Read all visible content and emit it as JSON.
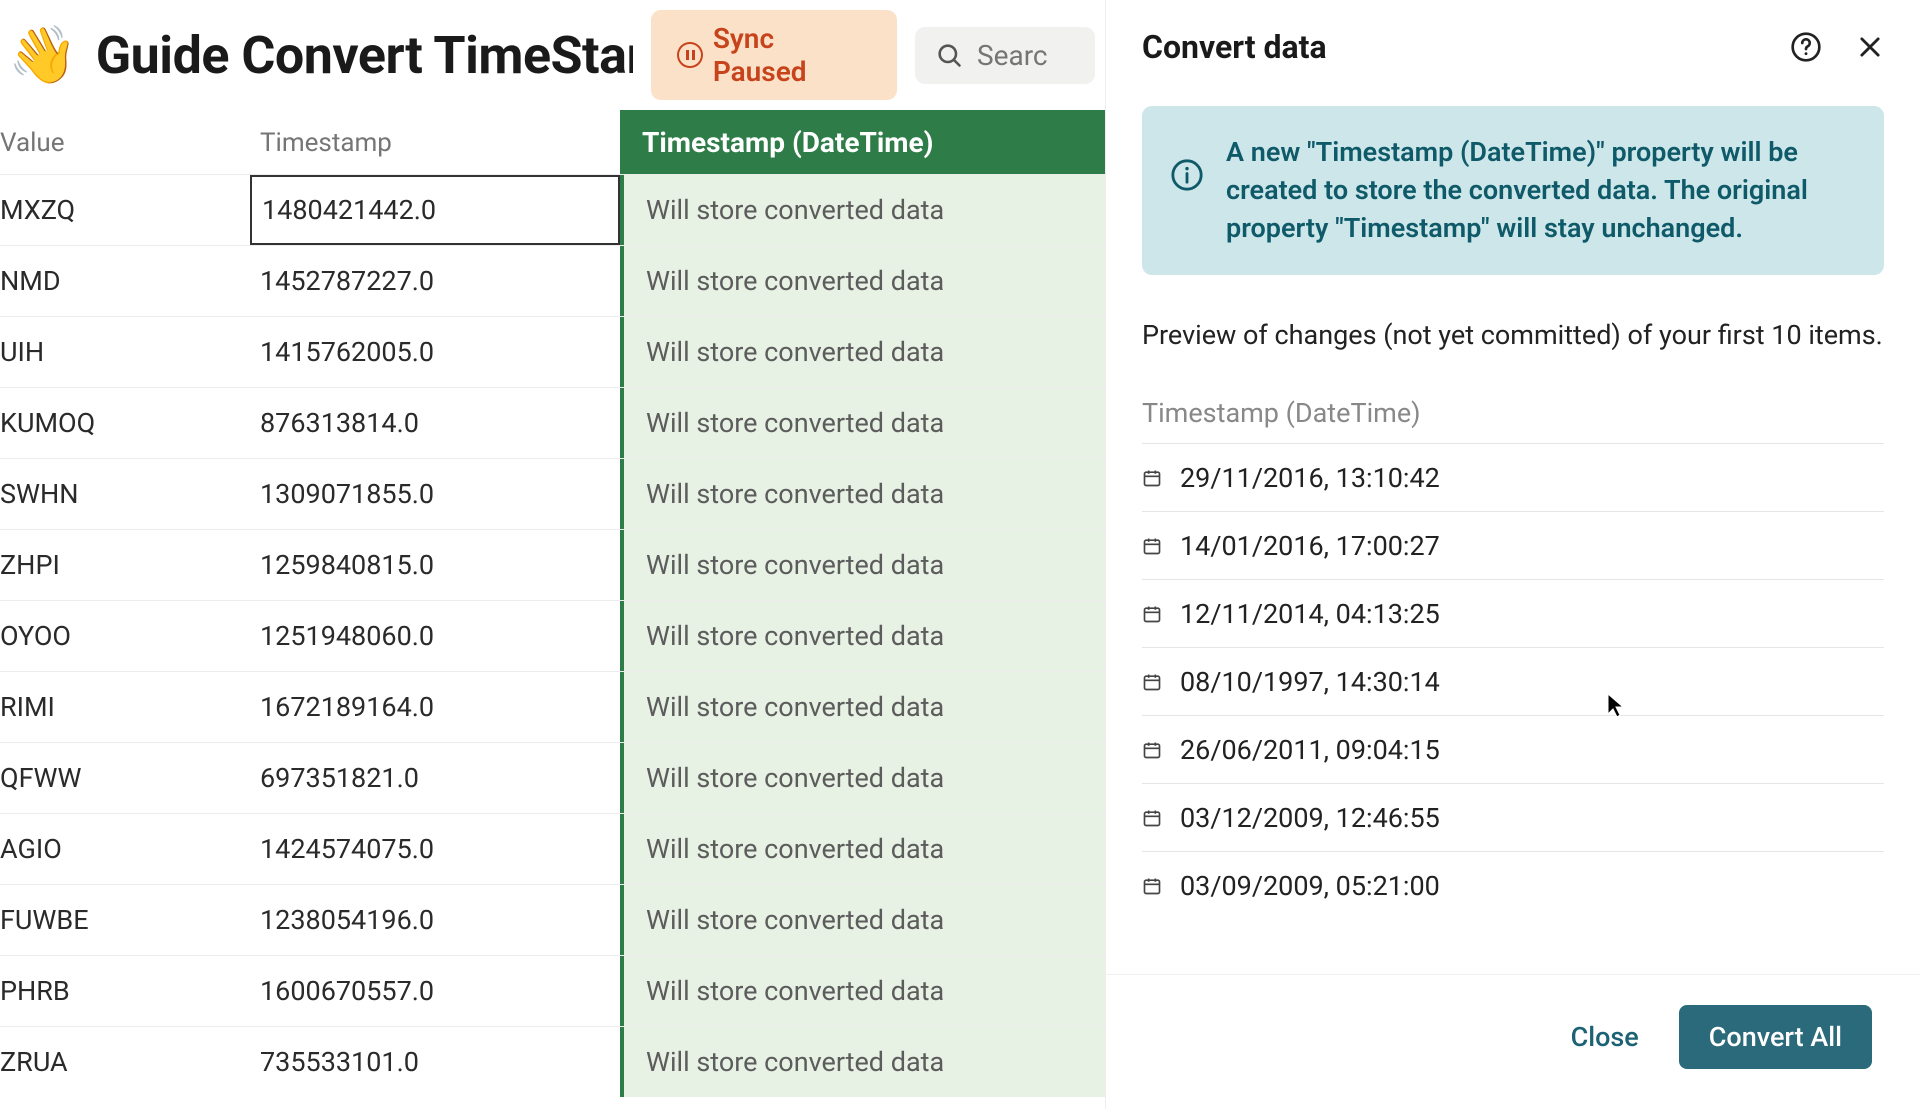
{
  "header": {
    "emoji": "👋",
    "title": "Guide Convert TimeStar",
    "sync_label": "Sync Paused",
    "search_placeholder": "Searc"
  },
  "table": {
    "columns": {
      "value": "Value",
      "timestamp": "Timestamp",
      "converted": "Timestamp (DateTime)"
    },
    "converted_placeholder": "Will store converted data",
    "rows": [
      {
        "value": "MXZQ",
        "timestamp": "1480421442.0",
        "selected": true
      },
      {
        "value": "NMD",
        "timestamp": "1452787227.0"
      },
      {
        "value": "UIH",
        "timestamp": "1415762005.0"
      },
      {
        "value": "KUMOQ",
        "timestamp": "876313814.0"
      },
      {
        "value": "SWHN",
        "timestamp": "1309071855.0"
      },
      {
        "value": "ZHPI",
        "timestamp": "1259840815.0"
      },
      {
        "value": "OYOO",
        "timestamp": "1251948060.0"
      },
      {
        "value": "RIMI",
        "timestamp": "1672189164.0"
      },
      {
        "value": "QFWW",
        "timestamp": "697351821.0"
      },
      {
        "value": "AGIO",
        "timestamp": "1424574075.0"
      },
      {
        "value": "FUWBE",
        "timestamp": "1238054196.0"
      },
      {
        "value": "PHRB",
        "timestamp": "1600670557.0"
      },
      {
        "value": "ZRUA",
        "timestamp": "735533101.0"
      }
    ]
  },
  "panel": {
    "title": "Convert data",
    "info_text": "A new \"Timestamp (DateTime)\" property will be created to store the converted data. The original property \"Timestamp\" will stay unchanged.",
    "preview_caption": "Preview of changes (not yet committed) of your first 10 items.",
    "preview_column": "Timestamp (DateTime)",
    "preview_rows": [
      "29/11/2016, 13:10:42",
      "14/01/2016, 17:00:27",
      "12/11/2014, 04:13:25",
      "08/10/1997, 14:30:14",
      "26/06/2011, 09:04:15",
      "03/12/2009, 12:46:55",
      "03/09/2009, 05:21:00"
    ],
    "close_label": "Close",
    "convert_label": "Convert All"
  },
  "colors": {
    "converted_header_bg": "#2e7d48",
    "converted_cell_bg": "#e7f1e4",
    "info_bg": "#cde6ea",
    "info_fg": "#0f5a69",
    "primary_btn_bg": "#2a6a7a",
    "sync_bg": "#fce1c9",
    "sync_fg": "#c7431b"
  }
}
